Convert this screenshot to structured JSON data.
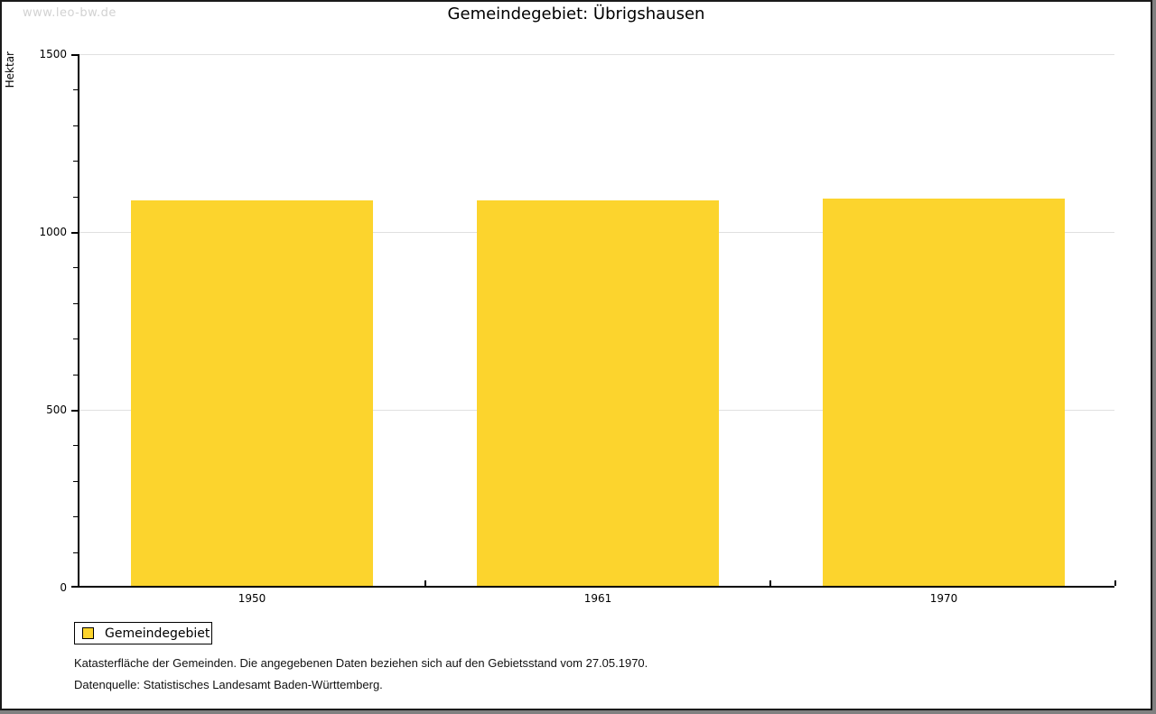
{
  "watermark": "www.leo-bw.de",
  "title": "Gemeindegebiet: Übrigshausen",
  "legend": {
    "label": "Gemeindegebiet"
  },
  "footnotes": [
    "Katasterfläche der Gemeinden. Die angegebenen Daten beziehen sich auf den Gebietsstand vom 27.05.1970.",
    "Datenquelle: Statistisches Landesamt Baden-Württemberg."
  ],
  "colors": {
    "bar": "#fcd42d",
    "gridline": "#e0e0e0",
    "axis": "#000000",
    "watermark": "#d2d2d2",
    "frame_shadow": "#808080"
  },
  "chart_data": {
    "type": "bar",
    "title": "Gemeindegebiet: Übrigshausen",
    "series_name": "Gemeindegebiet",
    "categories": [
      "1950",
      "1961",
      "1970"
    ],
    "values": [
      1083,
      1084,
      1088
    ],
    "xlabel": "",
    "ylabel": "Hektar",
    "ylim": [
      0,
      1500
    ],
    "ytick_major_interval": 500,
    "ytick_minor_interval": 100,
    "yticks_labeled": [
      0,
      500,
      1000,
      1500
    ],
    "grid": "horizontal-major-only",
    "legend_position": "bottom-left",
    "bar_relative_width": 0.7
  }
}
